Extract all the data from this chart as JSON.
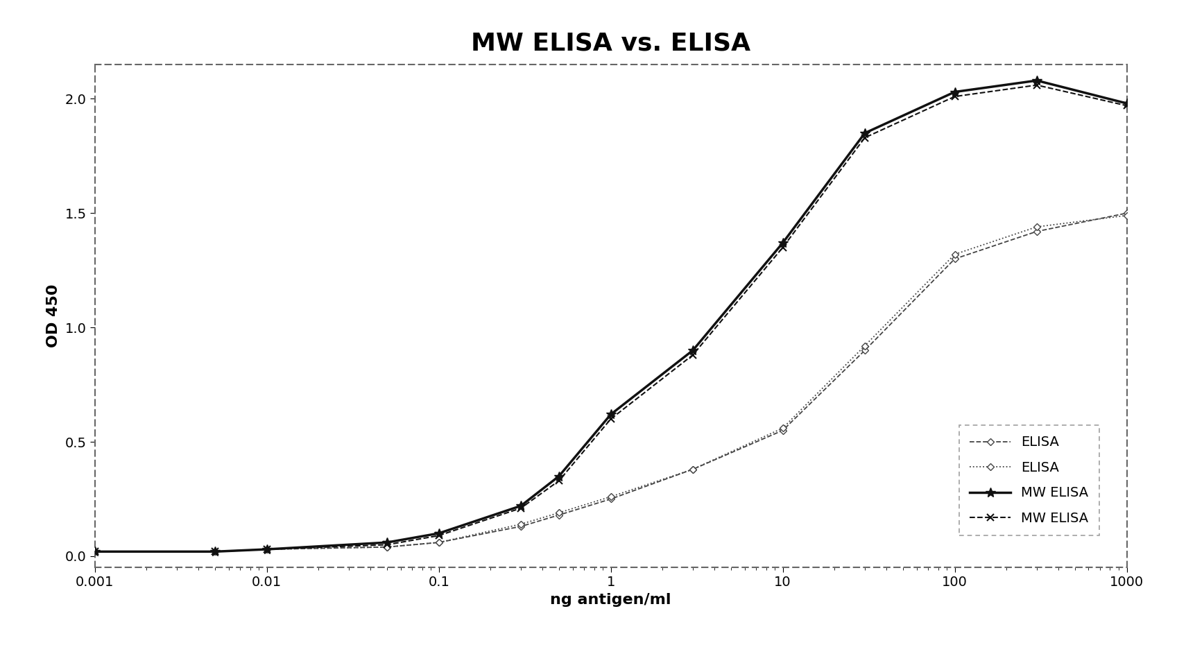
{
  "title": "MW ELISA vs. ELISA",
  "xlabel": "ng antigen/ml",
  "ylabel": "OD 450",
  "ylim": [
    -0.05,
    2.15
  ],
  "yticks": [
    0,
    0.5,
    1.0,
    1.5,
    2.0
  ],
  "series": [
    {
      "label": "ELISA",
      "x": [
        0.001,
        0.005,
        0.01,
        0.05,
        0.1,
        0.3,
        0.5,
        1,
        3,
        10,
        30,
        100,
        300,
        1000
      ],
      "y": [
        0.02,
        0.02,
        0.03,
        0.04,
        0.06,
        0.13,
        0.18,
        0.25,
        0.38,
        0.55,
        0.9,
        1.3,
        1.42,
        1.5
      ],
      "linestyle": "--",
      "linewidth": 1.3,
      "color": "#444444",
      "marker": "D",
      "markersize": 5,
      "markerfacecolor": "white",
      "markeredgecolor": "#444444",
      "markeredgewidth": 1.0
    },
    {
      "label": "ELISA",
      "x": [
        0.001,
        0.005,
        0.01,
        0.05,
        0.1,
        0.3,
        0.5,
        1,
        3,
        10,
        30,
        100,
        300,
        1000
      ],
      "y": [
        0.02,
        0.02,
        0.03,
        0.04,
        0.06,
        0.14,
        0.19,
        0.26,
        0.38,
        0.56,
        0.92,
        1.32,
        1.44,
        1.49
      ],
      "linestyle": ":",
      "linewidth": 1.3,
      "color": "#444444",
      "marker": "D",
      "markersize": 5,
      "markerfacecolor": "white",
      "markeredgecolor": "#444444",
      "markeredgewidth": 1.0
    },
    {
      "label": "MW ELISA",
      "x": [
        0.001,
        0.005,
        0.01,
        0.05,
        0.1,
        0.3,
        0.5,
        1,
        3,
        10,
        30,
        100,
        300,
        1000
      ],
      "y": [
        0.02,
        0.02,
        0.03,
        0.06,
        0.1,
        0.22,
        0.35,
        0.62,
        0.9,
        1.37,
        1.85,
        2.03,
        2.08,
        1.98
      ],
      "linestyle": "-",
      "linewidth": 2.5,
      "color": "#111111",
      "marker": "*",
      "markersize": 10,
      "markerfacecolor": "#111111",
      "markeredgecolor": "#111111",
      "markeredgewidth": 1.0
    },
    {
      "label": "MW ELISA",
      "x": [
        0.001,
        0.005,
        0.01,
        0.05,
        0.1,
        0.3,
        0.5,
        1,
        3,
        10,
        30,
        100,
        300,
        1000
      ],
      "y": [
        0.02,
        0.02,
        0.03,
        0.05,
        0.09,
        0.21,
        0.33,
        0.6,
        0.88,
        1.35,
        1.83,
        2.01,
        2.06,
        1.97
      ],
      "linestyle": "--",
      "linewidth": 1.5,
      "color": "#111111",
      "marker": "x",
      "markersize": 7,
      "markerfacecolor": "#111111",
      "markeredgecolor": "#111111",
      "markeredgewidth": 1.5
    }
  ],
  "legend_fontsize": 14,
  "title_fontsize": 26,
  "axis_label_fontsize": 16,
  "tick_fontsize": 14,
  "background_color": "#ffffff"
}
